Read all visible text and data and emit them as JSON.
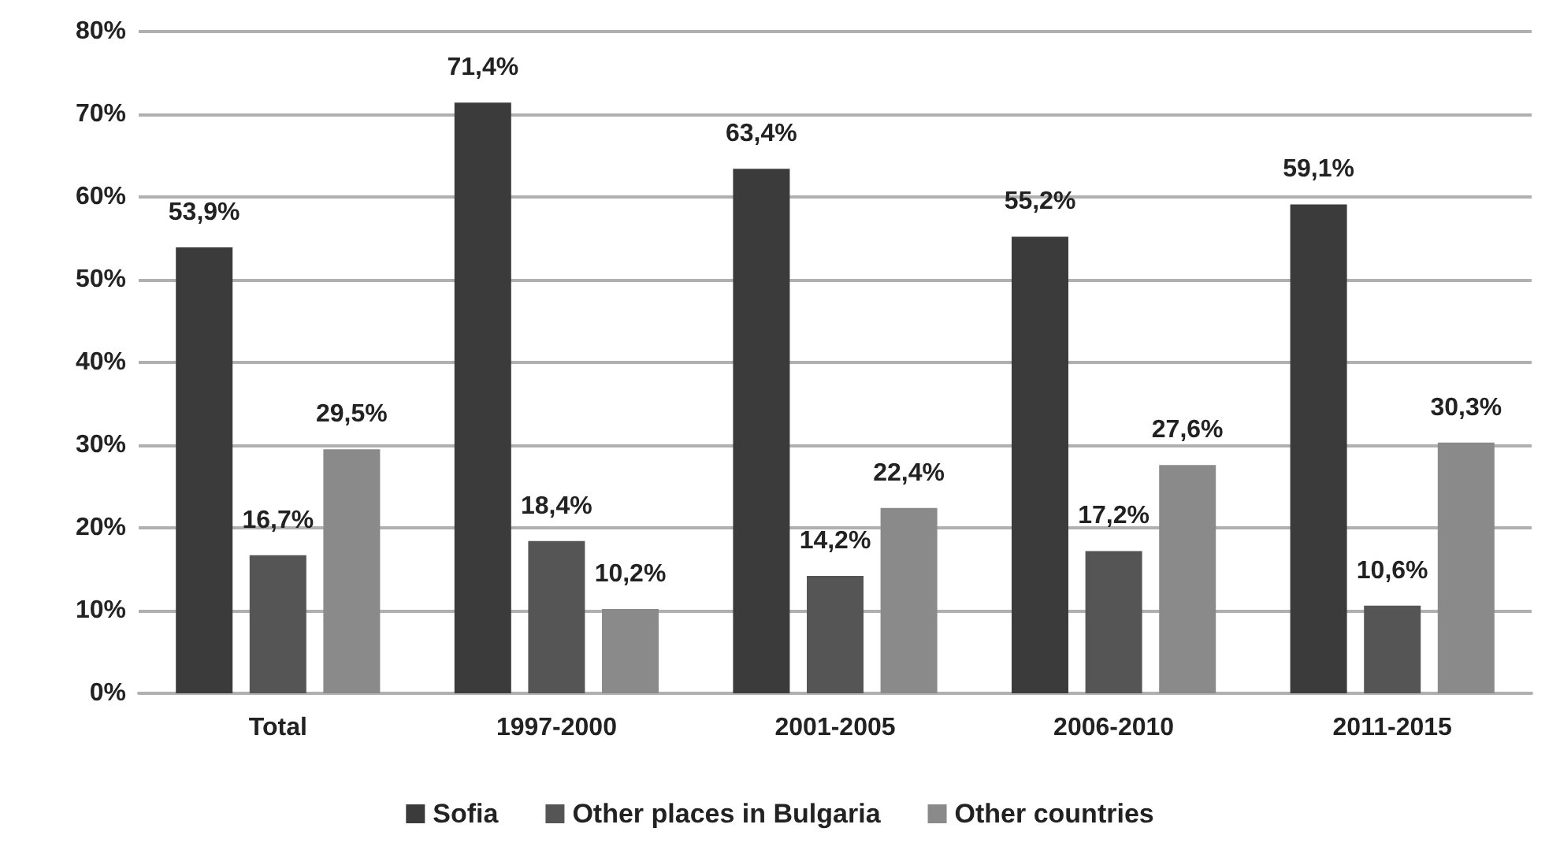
{
  "chart_data": {
    "type": "bar",
    "categories": [
      "Total",
      "1997-2000",
      "2001-2005",
      "2006-2010",
      "2011-2015"
    ],
    "series": [
      {
        "name": "Sofia",
        "color": "#3b3b3b",
        "values": [
          53.9,
          71.4,
          63.4,
          55.2,
          59.1
        ],
        "value_labels": [
          "53,9%",
          "71,4%",
          "63,4%",
          "55,2%",
          "59,1%"
        ]
      },
      {
        "name": "Other places in Bulgaria",
        "color": "#555555",
        "values": [
          16.7,
          18.4,
          14.2,
          17.2,
          10.6
        ],
        "value_labels": [
          "16,7%",
          "18,4%",
          "14,2%",
          "17,2%",
          "10,6%"
        ]
      },
      {
        "name": "Other countries",
        "color": "#8a8a8a",
        "values": [
          29.5,
          10.2,
          22.4,
          27.6,
          30.3
        ],
        "value_labels": [
          "29,5%",
          "10,2%",
          "22,4%",
          "27,6%",
          "30,3%"
        ]
      }
    ],
    "ylim": [
      0,
      80
    ],
    "yticks": [
      {
        "value": 0,
        "label": "0%"
      },
      {
        "value": 10,
        "label": "10%"
      },
      {
        "value": 20,
        "label": "20%"
      },
      {
        "value": 30,
        "label": "30%"
      },
      {
        "value": 40,
        "label": "40%"
      },
      {
        "value": 50,
        "label": "50%"
      },
      {
        "value": 60,
        "label": "60%"
      },
      {
        "value": 70,
        "label": "70%"
      },
      {
        "value": 80,
        "label": "80%"
      }
    ],
    "grid": "y",
    "legend": "bottom"
  }
}
